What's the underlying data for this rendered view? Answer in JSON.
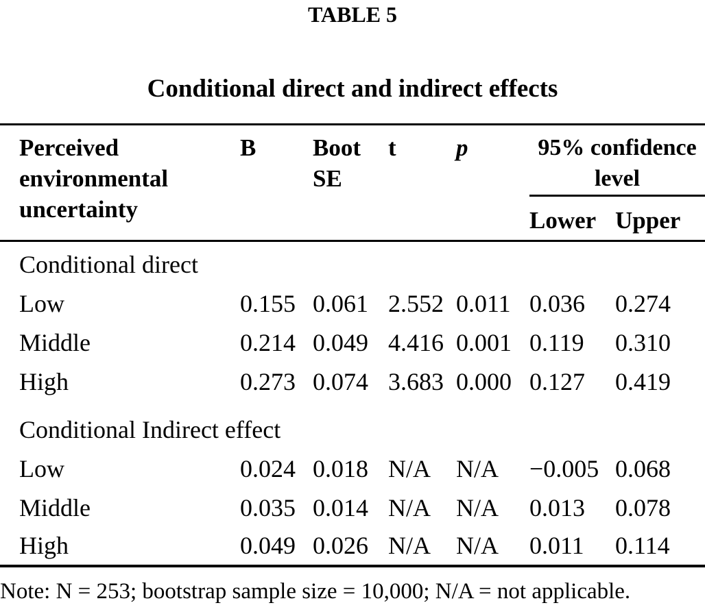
{
  "page": {
    "table_label": "TABLE 5",
    "title": "Conditional direct and indirect effects",
    "note": "Note: N = 253; bootstrap sample size = 10,000; N/A = not applicable."
  },
  "table": {
    "header": {
      "stub": "Perceived environmental uncertainty",
      "b": "B",
      "boot_se": "Boot SE",
      "t": "t",
      "p": "p",
      "ci": "95% confidence level",
      "lower": "Lower",
      "upper": "Upper"
    },
    "sections": [
      {
        "header": "Conditional direct",
        "rows": [
          {
            "label": "Low",
            "b": "0.155",
            "boot_se": "0.061",
            "t": "2.552",
            "p": "0.011",
            "lower": "0.036",
            "upper": "0.274"
          },
          {
            "label": "Middle",
            "b": "0.214",
            "boot_se": "0.049",
            "t": "4.416",
            "p": "0.001",
            "lower": "0.119",
            "upper": "0.310"
          },
          {
            "label": "High",
            "b": "0.273",
            "boot_se": "0.074",
            "t": "3.683",
            "p": "0.000",
            "lower": "0.127",
            "upper": "0.419"
          }
        ]
      },
      {
        "header": "Conditional Indirect effect",
        "rows": [
          {
            "label": "Low",
            "b": "0.024",
            "boot_se": "0.018",
            "t": "N/A",
            "p": "N/A",
            "lower": "−0.005",
            "upper": "0.068"
          },
          {
            "label": "Middle",
            "b": "0.035",
            "boot_se": "0.014",
            "t": "N/A",
            "p": "N/A",
            "lower": "0.013",
            "upper": "0.078"
          },
          {
            "label": "High",
            "b": "0.049",
            "boot_se": "0.026",
            "t": "N/A",
            "p": "N/A",
            "lower": "0.011",
            "upper": "0.114"
          }
        ]
      }
    ]
  }
}
